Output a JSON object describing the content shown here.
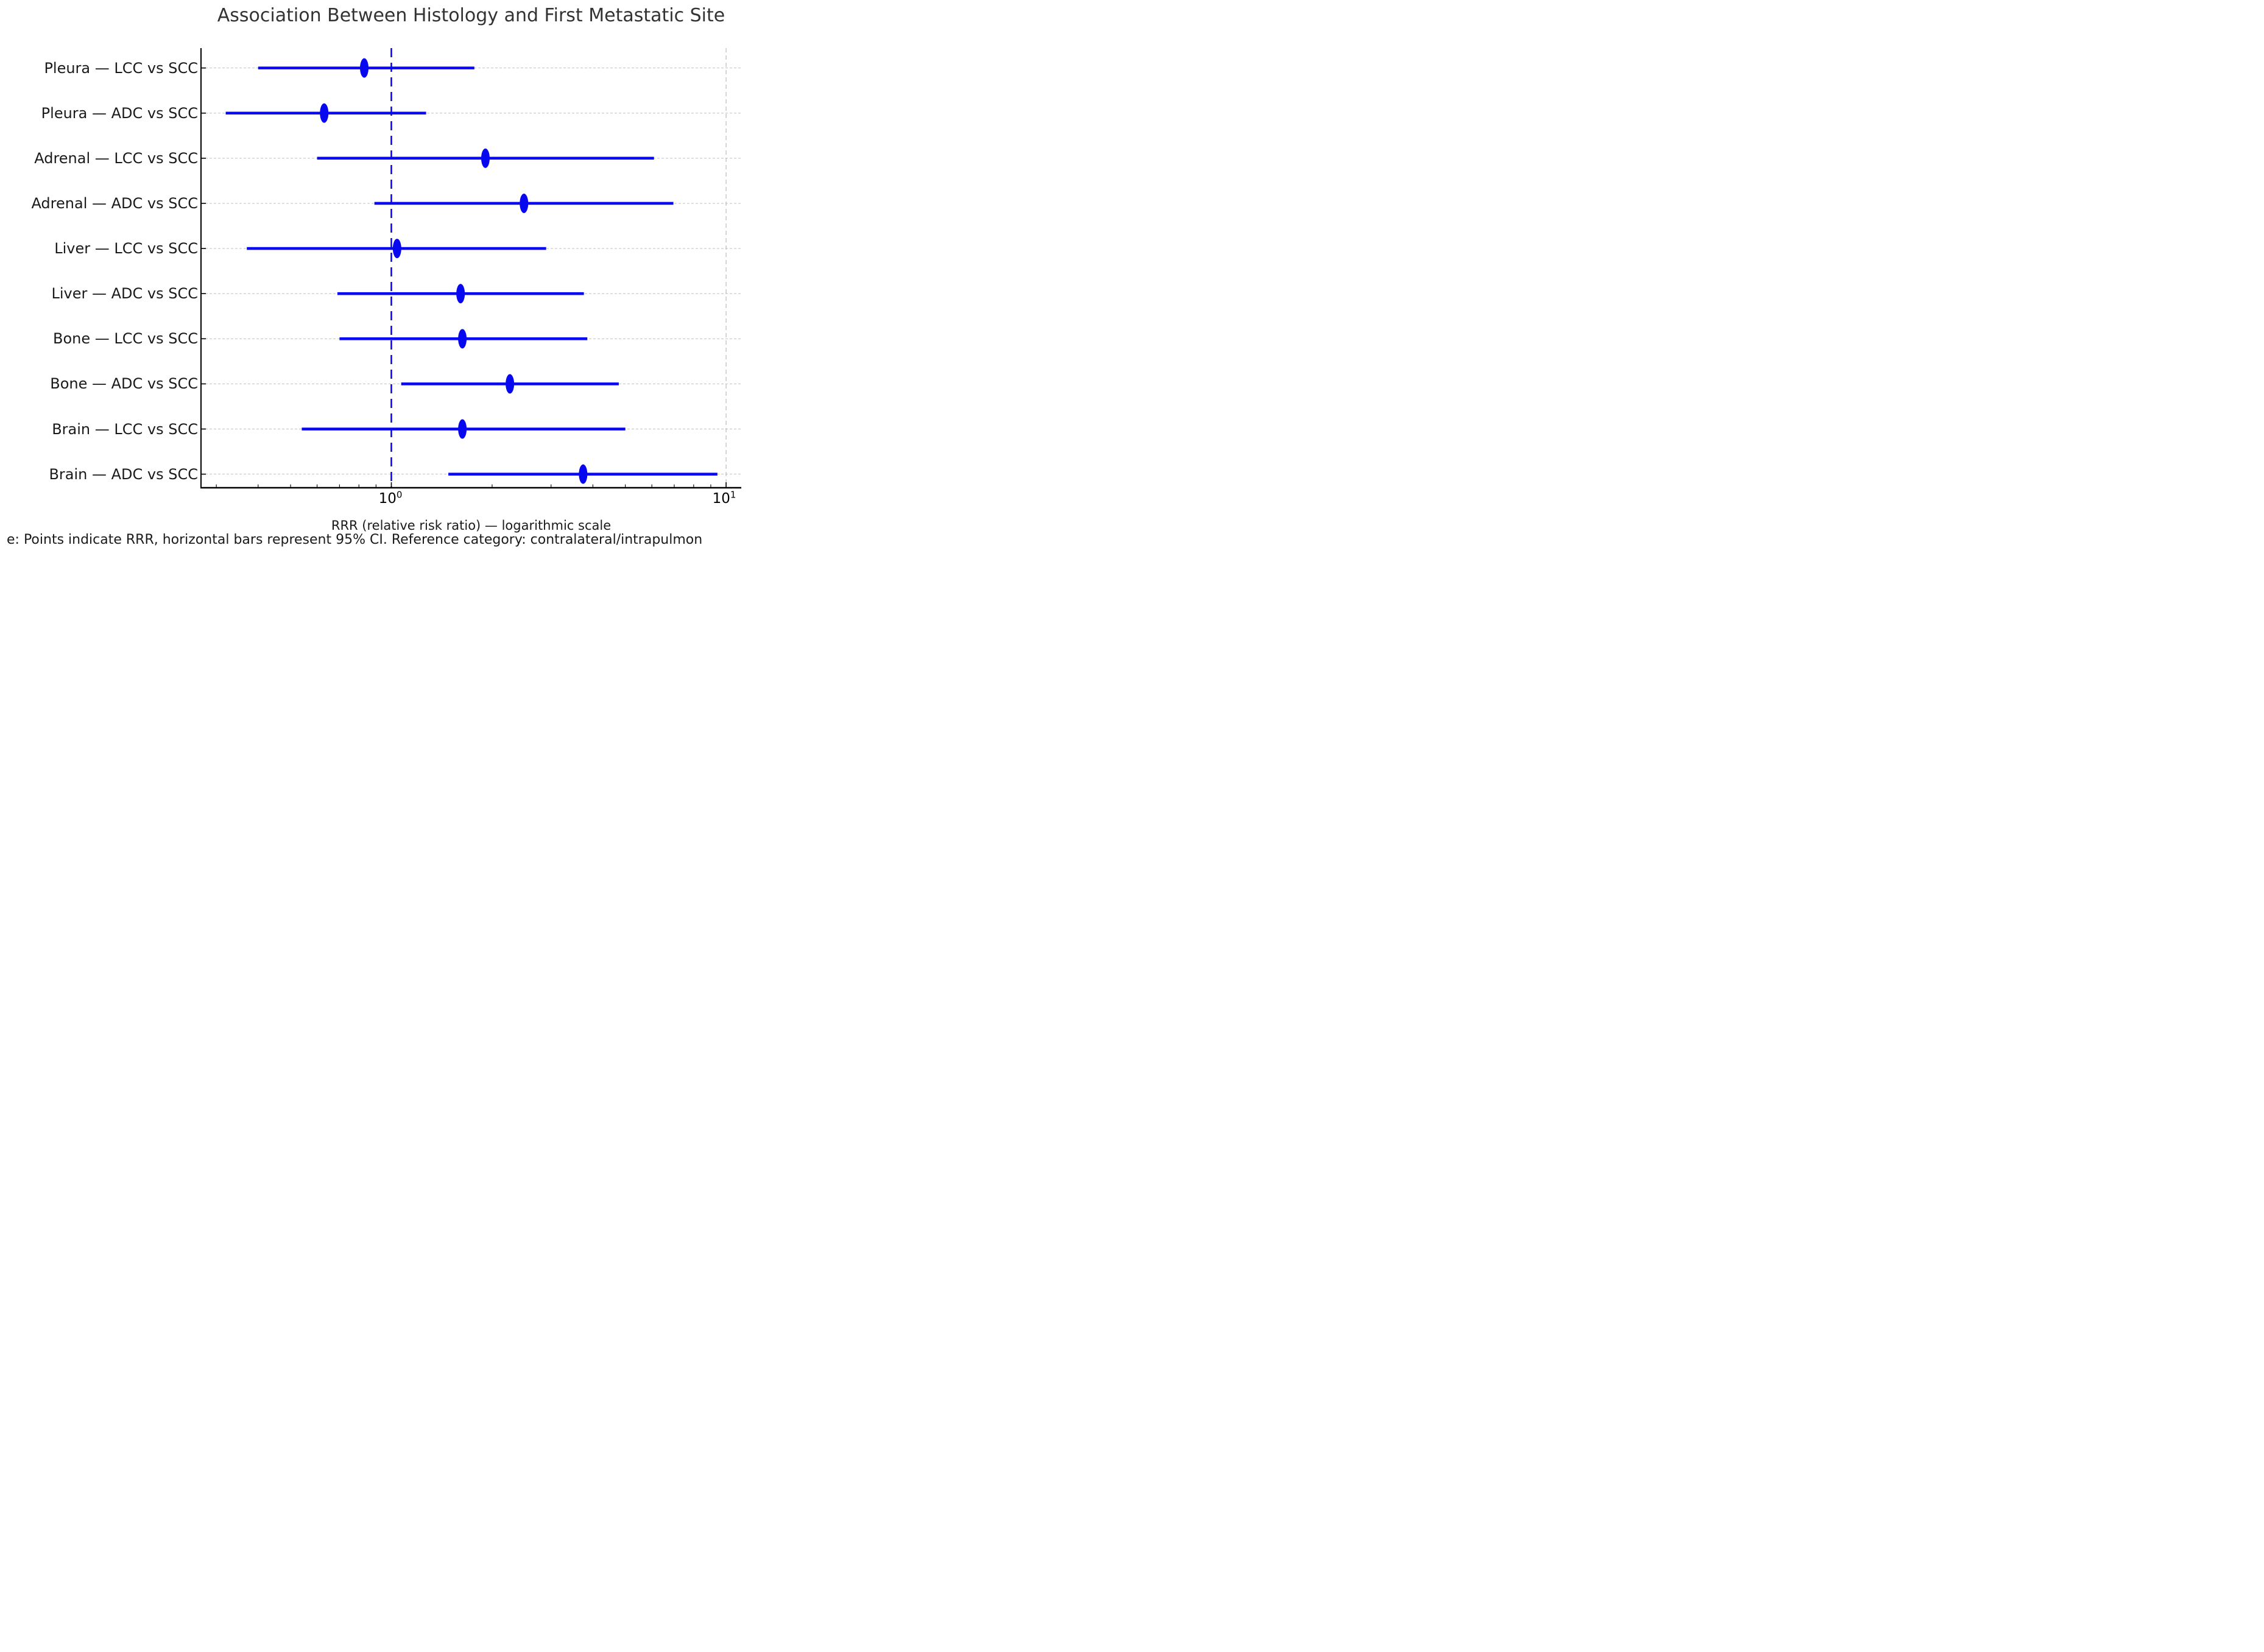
{
  "figure": {
    "title": "Association Between Histology and First Metastatic Site",
    "xlabel": "RRR (relative risk ratio) — logarithmic scale",
    "footnote": "e: Points indicate RRR, horizontal bars represent 95% CI. Reference category: contralateral/intrapulmon",
    "xticks": [
      {
        "base": "10",
        "exp": "0"
      },
      {
        "base": "10",
        "exp": "1"
      }
    ]
  },
  "chart_data": {
    "type": "scatter",
    "subtype": "forest-plot",
    "orientation": "horizontal",
    "title": "Association Between Histology and First Metastatic Site",
    "xlabel": "RRR (relative risk ratio) — logarithmic scale",
    "note": "e: Points indicate RRR, horizontal bars represent 95% CI. Reference category: contralateral/intrapulmon",
    "x_scale": "log10",
    "x_range": [
      0.27,
      11.1
    ],
    "x_major_ticks": [
      1,
      10
    ],
    "x_major_tick_labels": [
      "10^0",
      "10^1"
    ],
    "x_minor_ticks": [
      0.3,
      0.4,
      0.5,
      0.6,
      0.7,
      0.8,
      0.9,
      2,
      3,
      4,
      5,
      6,
      7,
      8,
      9
    ],
    "reference_line_x": 1.0,
    "grid": "horizontal dashed per row, vertical dashed at 10",
    "legend_position": "none",
    "categories": [
      "Pleura — LCC vs SCC",
      "Pleura — ADC vs SCC",
      "Adrenal — LCC vs SCC",
      "Adrenal — ADC vs SCC",
      "Liver — LCC vs SCC",
      "Liver — ADC vs SCC",
      "Bone — LCC vs SCC",
      "Bone — ADC vs SCC",
      "Brain — LCC vs SCC",
      "Brain — ADC vs SCC"
    ],
    "series": [
      {
        "name": "RRR (95% CI)",
        "rrr": [
          0.83,
          0.63,
          1.91,
          2.49,
          1.04,
          1.61,
          1.63,
          2.26,
          1.63,
          3.74
        ],
        "ci_low": [
          0.4,
          0.32,
          0.6,
          0.89,
          0.37,
          0.69,
          0.7,
          1.07,
          0.54,
          1.48
        ],
        "ci_high": [
          1.77,
          1.27,
          6.09,
          6.96,
          2.9,
          3.76,
          3.85,
          4.78,
          5.0,
          9.42
        ]
      }
    ],
    "colors": {
      "point": "#0808f0",
      "ci_bar": "#0808f0",
      "reference_line": "#0808e8",
      "grid": "#c0c0c0",
      "axis": "#000000"
    }
  }
}
